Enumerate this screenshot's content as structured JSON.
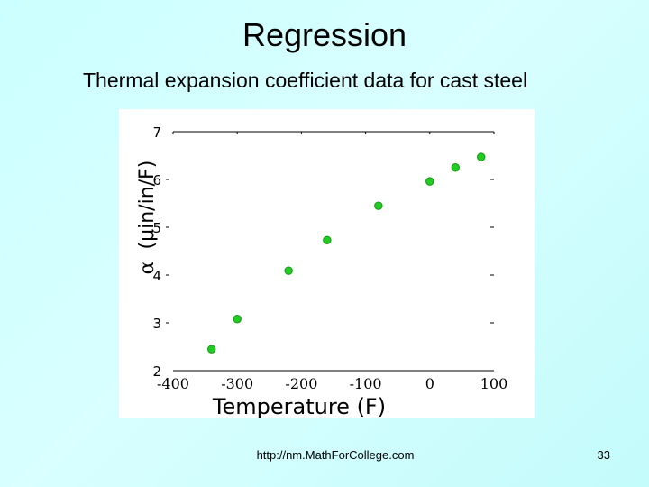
{
  "slide": {
    "title": "Regression",
    "subtitle": "Thermal expansion coefficient data for cast steel",
    "footer_url": "http://nm.MathForCollege.com",
    "page_number": "33"
  },
  "chart_data": {
    "type": "scatter",
    "title": "",
    "xlabel": "Temperature (F)",
    "ylabel_symbol": "α",
    "ylabel_text": "(μin/in/F)",
    "xlim": [
      -400,
      100
    ],
    "ylim": [
      2,
      7
    ],
    "xticks": [
      -400,
      -300,
      -200,
      -100,
      0,
      100
    ],
    "xtick_labels": [
      "-400",
      "-300",
      "-200",
      "-100",
      "0",
      "100"
    ],
    "yticks": [
      2,
      3,
      4,
      5,
      6,
      7
    ],
    "ytick_labels": [
      "2",
      "3",
      "4",
      "5",
      "6",
      "7"
    ],
    "grid": false,
    "marker_color": "#22cc22",
    "series": [
      {
        "name": "cast steel",
        "x": [
          -340,
          -300,
          -220,
          -160,
          -80,
          0,
          40,
          80
        ],
        "y": [
          2.45,
          3.08,
          4.09,
          4.73,
          5.45,
          5.96,
          6.25,
          6.47
        ]
      }
    ]
  }
}
